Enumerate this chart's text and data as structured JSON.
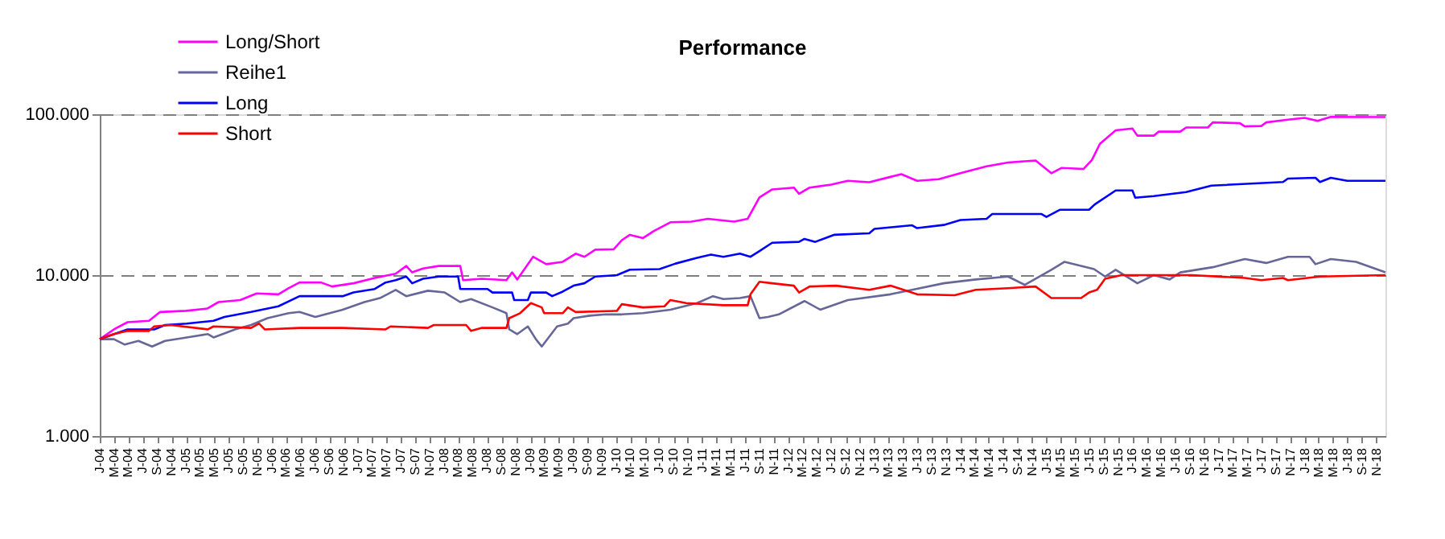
{
  "chart_data": {
    "type": "line",
    "title": "Performance",
    "xlim": [
      "2004-01-01",
      "2018-12-10"
    ],
    "xticks": [
      {
        "value": "2004-01",
        "label": "J-04"
      },
      {
        "value": "2004-03",
        "label": "M-04"
      },
      {
        "value": "2004-05",
        "label": "M-04"
      },
      {
        "value": "2004-07",
        "label": "J-04"
      },
      {
        "value": "2004-09",
        "label": "S-04"
      },
      {
        "value": "2004-11",
        "label": "N-04"
      },
      {
        "value": "2005-01",
        "label": "J-05"
      },
      {
        "value": "2005-03",
        "label": "M-05"
      },
      {
        "value": "2005-05",
        "label": "M-05"
      },
      {
        "value": "2005-07",
        "label": "J-05"
      },
      {
        "value": "2005-09",
        "label": "S-05"
      },
      {
        "value": "2005-11",
        "label": "N-05"
      },
      {
        "value": "2006-01",
        "label": "J-06"
      },
      {
        "value": "2006-03",
        "label": "M-06"
      },
      {
        "value": "2006-05",
        "label": "M-06"
      },
      {
        "value": "2006-07",
        "label": "J-06"
      },
      {
        "value": "2006-09",
        "label": "S-06"
      },
      {
        "value": "2006-11",
        "label": "N-06"
      },
      {
        "value": "2007-01",
        "label": "J-07"
      },
      {
        "value": "2007-03",
        "label": "M-07"
      },
      {
        "value": "2007-05",
        "label": "M-07"
      },
      {
        "value": "2007-07",
        "label": "J-07"
      },
      {
        "value": "2007-09",
        "label": "S-07"
      },
      {
        "value": "2007-11",
        "label": "N-07"
      },
      {
        "value": "2008-01",
        "label": "J-08"
      },
      {
        "value": "2008-03",
        "label": "M-08"
      },
      {
        "value": "2008-05",
        "label": "M-08"
      },
      {
        "value": "2008-07",
        "label": "J-08"
      },
      {
        "value": "2008-09",
        "label": "S-08"
      },
      {
        "value": "2008-11",
        "label": "N-08"
      },
      {
        "value": "2009-01",
        "label": "J-09"
      },
      {
        "value": "2009-03",
        "label": "M-09"
      },
      {
        "value": "2009-05",
        "label": "M-09"
      },
      {
        "value": "2009-07",
        "label": "J-09"
      },
      {
        "value": "2009-09",
        "label": "S-09"
      },
      {
        "value": "2009-11",
        "label": "N-09"
      },
      {
        "value": "2010-01",
        "label": "J-10"
      },
      {
        "value": "2010-03",
        "label": "M-10"
      },
      {
        "value": "2010-05",
        "label": "M-10"
      },
      {
        "value": "2010-07",
        "label": "J-10"
      },
      {
        "value": "2010-09",
        "label": "S-10"
      },
      {
        "value": "2010-11",
        "label": "N-10"
      },
      {
        "value": "2011-01",
        "label": "J-11"
      },
      {
        "value": "2011-03",
        "label": "M-11"
      },
      {
        "value": "2011-05",
        "label": "M-11"
      },
      {
        "value": "2011-07",
        "label": "J-11"
      },
      {
        "value": "2011-09",
        "label": "S-11"
      },
      {
        "value": "2011-11",
        "label": "N-11"
      },
      {
        "value": "2012-01",
        "label": "J-12"
      },
      {
        "value": "2012-03",
        "label": "M-12"
      },
      {
        "value": "2012-05",
        "label": "M-12"
      },
      {
        "value": "2012-07",
        "label": "J-12"
      },
      {
        "value": "2012-09",
        "label": "S-12"
      },
      {
        "value": "2012-11",
        "label": "N-12"
      },
      {
        "value": "2013-01",
        "label": "J-13"
      },
      {
        "value": "2013-03",
        "label": "M-13"
      },
      {
        "value": "2013-05",
        "label": "M-13"
      },
      {
        "value": "2013-07",
        "label": "J-13"
      },
      {
        "value": "2013-09",
        "label": "S-13"
      },
      {
        "value": "2013-11",
        "label": "N-13"
      },
      {
        "value": "2014-01",
        "label": "J-14"
      },
      {
        "value": "2014-03",
        "label": "M-14"
      },
      {
        "value": "2014-05",
        "label": "M-14"
      },
      {
        "value": "2014-07",
        "label": "J-14"
      },
      {
        "value": "2014-09",
        "label": "S-14"
      },
      {
        "value": "2014-11",
        "label": "N-14"
      },
      {
        "value": "2015-01",
        "label": "J-15"
      },
      {
        "value": "2015-03",
        "label": "M-15"
      },
      {
        "value": "2015-05",
        "label": "M-15"
      },
      {
        "value": "2015-07",
        "label": "J-15"
      },
      {
        "value": "2015-09",
        "label": "S-15"
      },
      {
        "value": "2015-11",
        "label": "N-15"
      },
      {
        "value": "2016-01",
        "label": "J-16"
      },
      {
        "value": "2016-03",
        "label": "M-16"
      },
      {
        "value": "2016-05",
        "label": "M-16"
      },
      {
        "value": "2016-07",
        "label": "J-16"
      },
      {
        "value": "2016-09",
        "label": "S-16"
      },
      {
        "value": "2016-11",
        "label": "N-16"
      },
      {
        "value": "2017-01",
        "label": "J-17"
      },
      {
        "value": "2017-03",
        "label": "M-17"
      },
      {
        "value": "2017-05",
        "label": "M-17"
      },
      {
        "value": "2017-07",
        "label": "J-17"
      },
      {
        "value": "2017-09",
        "label": "S-17"
      },
      {
        "value": "2017-11",
        "label": "N-17"
      },
      {
        "value": "2018-01",
        "label": "J-18"
      },
      {
        "value": "2018-03",
        "label": "M-18"
      },
      {
        "value": "2018-05",
        "label": "M-18"
      },
      {
        "value": "2018-07",
        "label": "J-18"
      },
      {
        "value": "2018-09",
        "label": "S-18"
      },
      {
        "value": "2018-11",
        "label": "N-18"
      }
    ],
    "ylim": [
      1,
      100
    ],
    "yticks": [
      {
        "value": 1,
        "label": "1.000"
      },
      {
        "value": 10,
        "label": "10.000"
      },
      {
        "value": 100,
        "label": "100.000"
      }
    ],
    "log": "y",
    "grid": "y",
    "legend": "top left",
    "marker": "none",
    "line_style": "solid",
    "series": [
      {
        "name": "Long/Short",
        "color": "#ff00ff",
        "x": [
          "2004-01-01",
          "2004-03-01",
          "2004-04-28",
          "2004-07-28",
          "2004-09-13",
          "2005-01-01",
          "2005-04-01",
          "2005-05-19",
          "2005-08-19",
          "2005-10-28",
          "2006-01-28",
          "2006-03-13",
          "2006-04-28",
          "2006-07-28",
          "2006-09-13",
          "2006-12-13",
          "2007-03-13",
          "2007-06-10",
          "2007-07-25",
          "2007-08-19",
          "2007-10-04",
          "2007-12-10",
          "2008-03-10",
          "2008-03-22",
          "2008-06-10",
          "2008-09-22",
          "2008-10-16",
          "2008-11-07",
          "2009-01-13",
          "2009-03-10",
          "2009-05-19",
          "2009-07-13",
          "2009-08-19",
          "2009-10-04",
          "2009-12-22",
          "2010-01-25",
          "2010-02-28",
          "2010-04-25",
          "2010-06-10",
          "2010-08-19",
          "2010-11-16",
          "2011-01-25",
          "2011-05-16",
          "2011-07-13",
          "2011-09-01",
          "2011-10-25",
          "2012-01-25",
          "2012-02-16",
          "2012-04-01",
          "2012-07-01",
          "2012-09-10",
          "2012-12-10",
          "2013-03-10",
          "2013-04-25",
          "2013-07-01",
          "2013-10-01",
          "2014-01-01",
          "2014-04-22",
          "2014-07-22",
          "2014-11-16",
          "2015-01-22",
          "2015-03-07",
          "2015-06-07",
          "2015-07-13",
          "2015-08-16",
          "2015-10-22",
          "2016-01-01",
          "2016-01-22",
          "2016-04-01",
          "2016-04-22",
          "2016-07-22",
          "2016-08-16",
          "2016-11-16",
          "2016-12-07",
          "2017-04-01",
          "2017-04-22",
          "2017-07-01",
          "2017-07-22",
          "2017-10-22",
          "2018-01-01",
          "2018-02-25",
          "2018-04-22",
          "2018-12-10"
        ],
        "values": [
          4.0,
          4.6,
          5.1,
          5.2,
          5.9,
          6.0,
          6.2,
          6.8,
          7.0,
          7.7,
          7.6,
          8.3,
          9.0,
          9.0,
          8.5,
          8.9,
          9.6,
          10.2,
          11.4,
          10.4,
          11.0,
          11.4,
          11.4,
          9.3,
          9.5,
          9.3,
          10.4,
          9.4,
          13.0,
          11.7,
          12.1,
          13.6,
          13.0,
          14.4,
          14.5,
          16.5,
          17.8,
          17.0,
          18.8,
          21.3,
          21.5,
          22.4,
          21.5,
          22.4,
          30.4,
          34.1,
          35,
          32,
          35,
          36.5,
          38.6,
          37.8,
          40.8,
          42.4,
          38.6,
          39.5,
          43,
          47.5,
          50.1,
          51.6,
          43,
          46.4,
          45.7,
          52,
          65.5,
          79.4,
          81.5,
          73.6,
          73.6,
          78,
          78,
          82.7,
          82.7,
          89,
          88,
          84,
          84.5,
          89,
          92.6,
          95,
          91,
          96.4,
          96
        ]
      },
      {
        "name": "Reihe1",
        "color": "#666699",
        "x": [
          "2004-01-01",
          "2004-03-01",
          "2004-04-16",
          "2004-06-13",
          "2004-08-10",
          "2004-10-04",
          "2005-01-04",
          "2005-04-04",
          "2005-04-28",
          "2005-07-28",
          "2005-10-04",
          "2005-12-13",
          "2006-03-13",
          "2006-04-28",
          "2006-07-04",
          "2006-10-28",
          "2007-01-28",
          "2007-04-04",
          "2007-06-10",
          "2007-07-25",
          "2007-10-25",
          "2008-01-04",
          "2008-03-10",
          "2008-04-25",
          "2008-07-25",
          "2008-09-22",
          "2008-10-04",
          "2008-11-07",
          "2008-12-22",
          "2009-01-25",
          "2009-02-19",
          "2009-04-25",
          "2009-06-10",
          "2009-07-04",
          "2009-09-10",
          "2009-11-19",
          "2010-01-25",
          "2010-04-25",
          "2010-08-19",
          "2010-12-10",
          "2011-02-16",
          "2011-04-01",
          "2011-06-10",
          "2011-07-25",
          "2011-09-01",
          "2011-10-07",
          "2011-11-22",
          "2012-03-10",
          "2012-05-16",
          "2012-09-10",
          "2013-03-10",
          "2013-06-10",
          "2013-10-22",
          "2014-03-07",
          "2014-07-22",
          "2014-10-01",
          "2015-01-22",
          "2015-03-19",
          "2015-07-22",
          "2015-09-07",
          "2015-10-22",
          "2016-01-22",
          "2016-04-01",
          "2016-06-07",
          "2016-07-22",
          "2016-12-07",
          "2017-04-22",
          "2017-07-22",
          "2017-10-22",
          "2018-01-22",
          "2018-02-16",
          "2018-04-22",
          "2018-08-07",
          "2018-12-10"
        ],
        "values": [
          4.0,
          4.0,
          3.7,
          3.9,
          3.6,
          3.9,
          4.1,
          4.3,
          4.1,
          4.6,
          4.9,
          5.4,
          5.8,
          5.9,
          5.5,
          6.1,
          6.8,
          7.2,
          8.1,
          7.4,
          8.0,
          7.8,
          6.8,
          7.1,
          6.3,
          5.8,
          4.6,
          4.3,
          4.8,
          4.0,
          3.6,
          4.8,
          5.0,
          5.4,
          5.6,
          5.7,
          5.7,
          5.8,
          6.1,
          6.7,
          7.4,
          7.1,
          7.2,
          7.4,
          5.4,
          5.5,
          5.7,
          6.9,
          6.1,
          7.0,
          7.6,
          8.1,
          8.9,
          9.4,
          9.8,
          8.7,
          10.8,
          12.1,
          10.9,
          9.8,
          10.8,
          8.9,
          10,
          9.4,
          10.4,
          11.2,
          12.6,
          11.9,
          13.0,
          13.0,
          11.7,
          12.6,
          12.1,
          10.4
        ]
      },
      {
        "name": "Long",
        "color": "#0000ff",
        "x": [
          "2004-01-01",
          "2004-04-28",
          "2004-08-19",
          "2004-10-04",
          "2005-01-04",
          "2005-04-28",
          "2005-06-13",
          "2005-10-04",
          "2006-01-28",
          "2006-04-28",
          "2006-10-28",
          "2006-12-13",
          "2007-03-13",
          "2007-04-28",
          "2007-06-10",
          "2007-07-25",
          "2007-08-19",
          "2007-10-04",
          "2007-12-10",
          "2008-03-01",
          "2008-03-10",
          "2008-07-04",
          "2008-07-25",
          "2008-10-16",
          "2008-10-25",
          "2008-12-22",
          "2009-01-04",
          "2009-03-10",
          "2009-04-04",
          "2009-05-19",
          "2009-07-04",
          "2009-08-19",
          "2009-10-04",
          "2010-01-04",
          "2010-02-28",
          "2010-07-04",
          "2010-09-10",
          "2010-12-10",
          "2011-02-07",
          "2011-04-01",
          "2011-06-10",
          "2011-07-25",
          "2011-09-01",
          "2011-10-25",
          "2012-02-16",
          "2012-03-10",
          "2012-04-25",
          "2012-07-13",
          "2012-12-10",
          "2013-01-01",
          "2013-06-10",
          "2013-07-01",
          "2013-10-22",
          "2014-01-01",
          "2014-04-22",
          "2014-05-16",
          "2014-12-10",
          "2015-01-01",
          "2015-02-28",
          "2015-07-01",
          "2015-07-25",
          "2015-10-22",
          "2016-01-01",
          "2016-01-13",
          "2016-04-01",
          "2016-08-16",
          "2016-12-01",
          "2017-10-01",
          "2017-10-22",
          "2018-02-16",
          "2018-03-07",
          "2018-04-22",
          "2018-07-01",
          "2018-12-10"
        ],
        "values": [
          4.0,
          4.6,
          4.6,
          4.9,
          5.0,
          5.2,
          5.5,
          5.9,
          6.4,
          7.4,
          7.4,
          7.8,
          8.2,
          9.0,
          9.3,
          9.8,
          8.9,
          9.5,
          9.8,
          9.8,
          8.2,
          8.2,
          7.8,
          7.8,
          7.0,
          7.0,
          7.8,
          7.8,
          7.4,
          7.9,
          8.6,
          8.9,
          9.8,
          10,
          10.8,
          10.9,
          11.8,
          12.8,
          13.4,
          13,
          13.6,
          13,
          14.1,
          15.9,
          16.1,
          16.8,
          16.1,
          17.8,
          18.2,
          19.4,
          20.4,
          19.6,
          20.5,
          22,
          22.4,
          24,
          24,
          23,
          25.5,
          25.5,
          27.5,
          33.6,
          33.6,
          30.3,
          31,
          32.8,
          36,
          37.9,
          39.8,
          40.3,
          37.9,
          40.3,
          38.6,
          38.6
        ]
      },
      {
        "name": "Short",
        "color": "#ff0000",
        "x": [
          "2004-01-01",
          "2004-03-01",
          "2004-04-28",
          "2004-07-28",
          "2004-08-19",
          "2004-10-28",
          "2005-04-04",
          "2005-04-28",
          "2005-10-04",
          "2005-11-07",
          "2005-12-01",
          "2006-04-28",
          "2006-10-28",
          "2007-04-28",
          "2007-05-19",
          "2007-10-25",
          "2007-11-19",
          "2008-04-04",
          "2008-04-25",
          "2008-06-10",
          "2008-09-22",
          "2008-10-04",
          "2008-11-19",
          "2009-01-04",
          "2009-02-19",
          "2009-03-01",
          "2009-05-19",
          "2009-06-10",
          "2009-07-13",
          "2010-01-04",
          "2010-01-25",
          "2010-04-25",
          "2010-07-25",
          "2010-08-19",
          "2010-10-25",
          "2011-04-01",
          "2011-07-13",
          "2011-07-25",
          "2011-09-01",
          "2011-10-25",
          "2012-01-25",
          "2012-02-16",
          "2012-04-01",
          "2012-07-22",
          "2012-12-10",
          "2013-03-10",
          "2013-07-01",
          "2013-12-07",
          "2014-03-07",
          "2014-07-22",
          "2014-11-16",
          "2015-01-22",
          "2015-05-28",
          "2015-07-01",
          "2015-08-04",
          "2015-09-07",
          "2015-11-16",
          "2016-09-07",
          "2017-04-22",
          "2017-07-01",
          "2017-10-01",
          "2017-10-22",
          "2018-03-07",
          "2018-12-10"
        ],
        "values": [
          4.0,
          4.3,
          4.5,
          4.5,
          4.8,
          4.9,
          4.6,
          4.8,
          4.7,
          5.0,
          4.6,
          4.7,
          4.7,
          4.6,
          4.8,
          4.7,
          4.9,
          4.9,
          4.5,
          4.7,
          4.7,
          5.4,
          5.8,
          6.7,
          6.3,
          5.8,
          5.8,
          6.3,
          5.9,
          6.0,
          6.6,
          6.3,
          6.4,
          7.0,
          6.7,
          6.5,
          6.5,
          7.6,
          9.1,
          8.9,
          8.6,
          7.8,
          8.5,
          8.6,
          8.1,
          8.6,
          7.6,
          7.5,
          8.1,
          8.3,
          8.5,
          7.2,
          7.2,
          7.8,
          8.1,
          9.5,
          10,
          10,
          9.6,
          9.3,
          9.6,
          9.3,
          9.8,
          10
        ]
      }
    ]
  }
}
